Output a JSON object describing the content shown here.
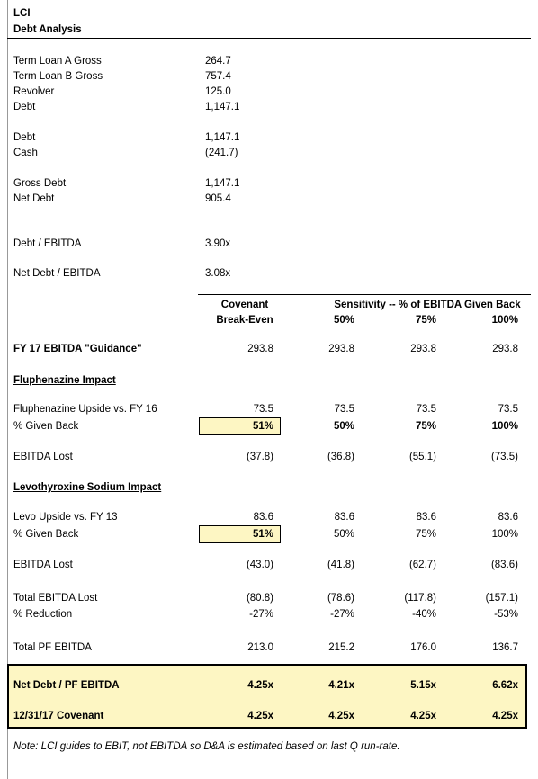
{
  "header": {
    "company": "LCI",
    "title": "Debt Analysis"
  },
  "debt": [
    {
      "label": "Term Loan A Gross",
      "value": "264.7"
    },
    {
      "label": "Term Loan B Gross",
      "value": "757.4"
    },
    {
      "label": "Revolver",
      "value": "125.0"
    },
    {
      "label": "Debt",
      "value": "1,147.1"
    },
    {
      "label": "Debt",
      "value": "1,147.1"
    },
    {
      "label": "Cash",
      "value": "(241.7)"
    },
    {
      "label": "Gross Debt",
      "value": "1,147.1"
    },
    {
      "label": "Net Debt",
      "value": "905.4"
    },
    {
      "label": "Debt / EBITDA",
      "value": "3.90x"
    },
    {
      "label": "Net Debt / EBITDA",
      "value": "3.08x"
    }
  ],
  "sensitivity": {
    "columns": {
      "covenant": [
        "Covenant",
        "Break-Even"
      ],
      "sensitivity": "Sensitivity -- % of EBITDA Given Back",
      "scenarios": [
        "50%",
        "75%",
        "100%"
      ]
    },
    "rows": [
      {
        "label": "FY 17 EBITDA \"Guidance\"",
        "values": [
          "293.8",
          "293.8",
          "293.8",
          "293.8"
        ]
      },
      {
        "label": "Fluphenazine Impact"
      },
      {
        "label": "Fluphenazine Upside vs. FY 16",
        "values": [
          "73.5",
          "73.5",
          "73.5",
          "73.5"
        ]
      },
      {
        "label": "% Given Back",
        "values": [
          "51%",
          "50%",
          "75%",
          "100%"
        ]
      },
      {
        "label": "EBITDA Lost",
        "values": [
          "(37.8)",
          "(36.8)",
          "(55.1)",
          "(73.5)"
        ]
      },
      {
        "label": "Levothyroxine Sodium Impact"
      },
      {
        "label": "Levo Upside vs. FY 13",
        "values": [
          "83.6",
          "83.6",
          "83.6",
          "83.6"
        ]
      },
      {
        "label": "% Given Back",
        "values": [
          "51%",
          "50%",
          "75%",
          "100%"
        ]
      },
      {
        "label": "EBITDA Lost",
        "values": [
          "(43.0)",
          "(41.8)",
          "(62.7)",
          "(83.6)"
        ]
      },
      {
        "label": "Total EBITDA Lost",
        "values": [
          "(80.8)",
          "(78.6)",
          "(117.8)",
          "(157.1)"
        ]
      },
      {
        "label": "% Reduction",
        "values": [
          "-27%",
          "-27%",
          "-40%",
          "-53%"
        ]
      },
      {
        "label": "Total PF EBITDA",
        "values": [
          "213.0",
          "215.2",
          "176.0",
          "136.7"
        ]
      }
    ],
    "summary": [
      {
        "label": "Net Debt / PF EBITDA",
        "values": [
          "4.25x",
          "4.21x",
          "5.15x",
          "6.62x"
        ]
      },
      {
        "label": "12/31/17 Covenant",
        "values": [
          "4.25x",
          "4.25x",
          "4.25x",
          "4.25x"
        ]
      }
    ]
  },
  "note": "Note: LCI guides to EBIT, not EBITDA so D&A is estimated based on last Q run-rate."
}
